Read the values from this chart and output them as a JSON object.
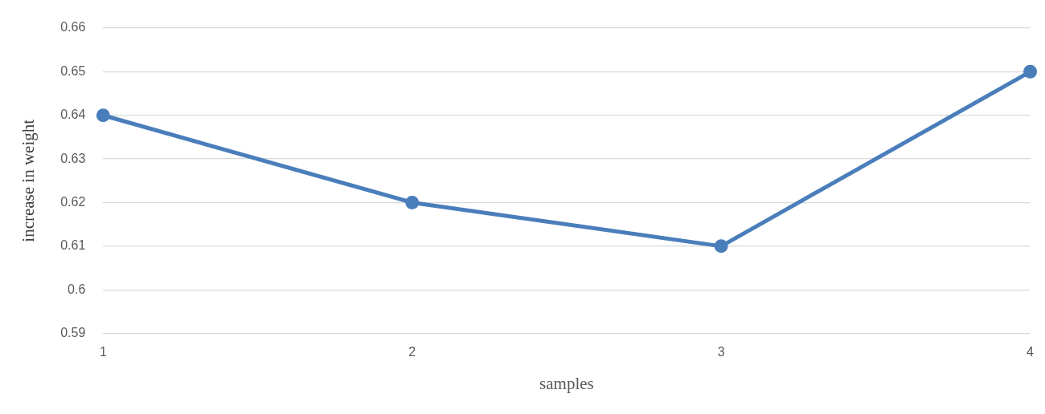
{
  "chart_data": {
    "type": "line",
    "xlabel": "samples",
    "ylabel": "increase in weight",
    "categories": [
      "1",
      "2",
      "3",
      "4"
    ],
    "series": [
      {
        "color": "#4a7ebb",
        "values": [
          0.64,
          0.62,
          0.61,
          0.65
        ]
      }
    ],
    "ylim": [
      0.59,
      0.66
    ],
    "yticks": [
      0.59,
      0.6,
      0.61,
      0.62,
      0.63,
      0.64,
      0.65,
      0.66
    ],
    "grid": "y",
    "legend": false,
    "marker": "circle",
    "line_style": "solid"
  }
}
